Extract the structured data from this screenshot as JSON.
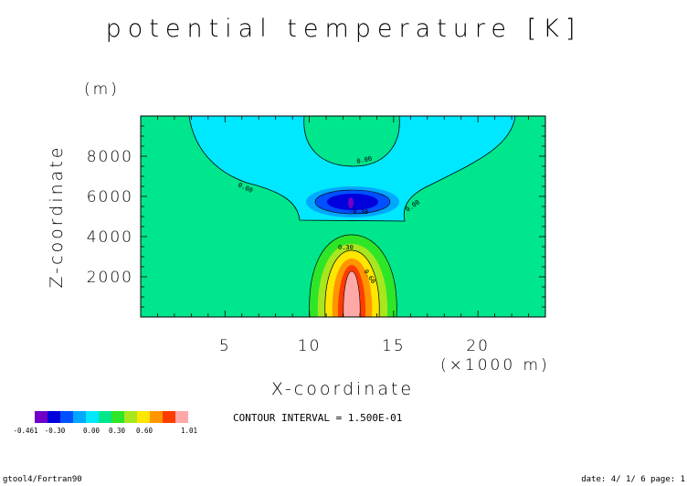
{
  "chart_data": {
    "type": "contour",
    "title": "potential temperature [K]",
    "xlabel": "X-coordinate",
    "x_unit": "(×1000 m)",
    "ylabel": "Z-coordinate",
    "y_unit": "(m)",
    "xlim": [
      0,
      24
    ],
    "ylim": [
      0,
      10000
    ],
    "x_ticks": [
      5,
      10,
      15,
      20
    ],
    "y_ticks": [
      2000,
      4000,
      6000,
      8000
    ],
    "contour_interval_text": "CONTOUR INTERVAL = 1.500E-01",
    "contour_labels": [
      "0.00",
      "0.00",
      "0.00",
      "-0.30",
      "0.30",
      "0.60"
    ],
    "colorbar": {
      "colors": [
        "#7000c8",
        "#0000dc",
        "#0050ff",
        "#00a8ff",
        "#00e8ff",
        "#00e68c",
        "#2ee628",
        "#a8e61e",
        "#ffe600",
        "#ff9600",
        "#ff3c00",
        "#ffa8a8"
      ],
      "tick_labels": [
        "-0.461",
        "-0.30",
        "0.00",
        "0.30",
        "0.60",
        "1.01"
      ],
      "min": -0.461,
      "max": 1.01
    }
  },
  "footer": {
    "left": "gtool4/Fortran90",
    "right": "date: 4/ 1/ 6 page: 1"
  }
}
